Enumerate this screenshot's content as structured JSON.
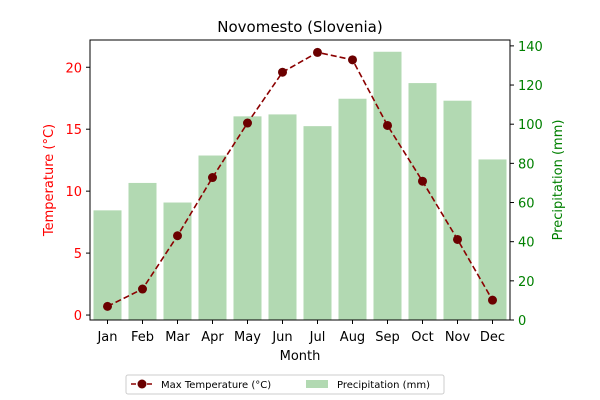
{
  "chart_data": {
    "type": "bar+line",
    "title": "Novomesto (Slovenia)",
    "xlabel": "Month",
    "categories": [
      "Jan",
      "Feb",
      "Mar",
      "Apr",
      "May",
      "Jun",
      "Jul",
      "Aug",
      "Sep",
      "Oct",
      "Nov",
      "Dec"
    ],
    "left_axis": {
      "label": "Temperature (°C)",
      "color": "#ff0000",
      "ylim": [
        -0.4,
        22.2
      ],
      "ticks": [
        0,
        5,
        10,
        15,
        20
      ]
    },
    "right_axis": {
      "label": "Precipitation (mm)",
      "color": "#008000",
      "ylim": [
        0,
        143
      ],
      "ticks": [
        0,
        20,
        40,
        60,
        80,
        100,
        120,
        140
      ]
    },
    "series": [
      {
        "name": "Max Temperature (°C)",
        "type": "line",
        "axis": "left",
        "color": "#8b0000",
        "marker_color": "#6b0000",
        "line_style": "dashed",
        "values": [
          0.7,
          2.1,
          6.4,
          11.1,
          15.5,
          19.6,
          21.2,
          20.6,
          15.3,
          10.8,
          6.1,
          1.2
        ]
      },
      {
        "name": "Precipitation (mm)",
        "type": "bar",
        "axis": "right",
        "color": "#b2d9b2",
        "values": [
          56,
          70,
          60,
          84,
          104,
          105,
          99,
          113,
          137,
          121,
          112,
          82
        ]
      }
    ],
    "legend": {
      "placement": "bottom-center",
      "columns": 2
    }
  }
}
